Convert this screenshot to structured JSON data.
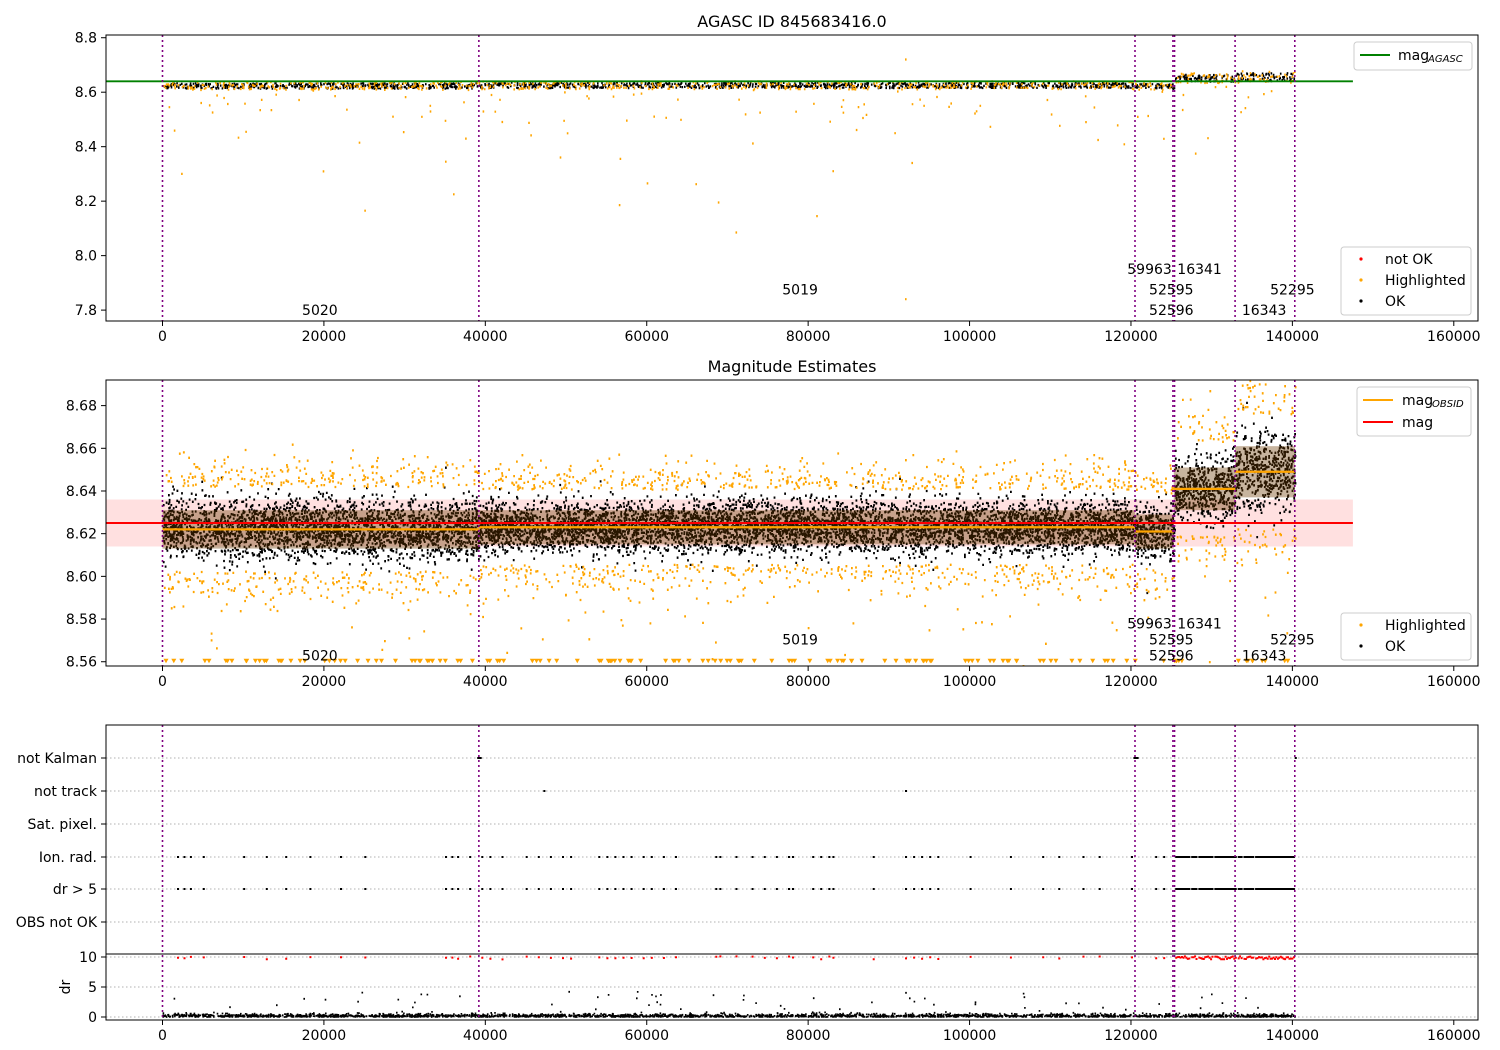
{
  "chart_data": {
    "type": "scatter",
    "x_ticks": [
      0,
      20000,
      40000,
      60000,
      80000,
      100000,
      120000,
      140000,
      160000
    ],
    "x_range": [
      -7000,
      163000
    ],
    "obsid_boundaries": [
      0,
      39200,
      120500,
      125200,
      125400,
      132900,
      140300
    ],
    "panels": [
      {
        "title": "AGASC ID 845683416.0",
        "ylim": [
          7.76,
          8.81
        ],
        "y_ticks": [
          7.8,
          8.0,
          8.2,
          8.4,
          8.6,
          8.8
        ],
        "legend_top": [
          {
            "label": "mag",
            "sub": "AGASC",
            "color": "#008000"
          }
        ],
        "legend_bottom": [
          {
            "label": "not OK",
            "color": "#ff0000"
          },
          {
            "label": "Highlighted",
            "color": "#ffa500"
          },
          {
            "label": "OK",
            "color": "#000000"
          }
        ],
        "mag_agasc": 8.64,
        "segments": [
          {
            "x0": 0,
            "x1": 39200,
            "mean": 8.623,
            "spread": 0.02
          },
          {
            "x0": 39200,
            "x1": 120500,
            "mean": 8.625,
            "spread": 0.02
          },
          {
            "x0": 120500,
            "x1": 125300,
            "mean": 8.621,
            "spread": 0.018
          },
          {
            "x0": 125300,
            "x1": 132900,
            "mean": 8.651,
            "spread": 0.025
          },
          {
            "x0": 132900,
            "x1": 140300,
            "mean": 8.655,
            "spread": 0.03
          }
        ],
        "obsid_labels": [
          {
            "text": "5020",
            "x": 19500,
            "y": 7.8
          },
          {
            "text": "5019",
            "x": 79000,
            "y": 7.875
          },
          {
            "text": "59963",
            "x": 122300,
            "y": 7.95
          },
          {
            "text": "52595",
            "x": 125000,
            "y": 7.875
          },
          {
            "text": "52596",
            "x": 125000,
            "y": 7.8
          },
          {
            "text": "16341",
            "x": 128500,
            "y": 7.95
          },
          {
            "text": "16343",
            "x": 136500,
            "y": 7.8
          },
          {
            "text": "52295",
            "x": 140000,
            "y": 7.875
          }
        ]
      },
      {
        "title": "Magnitude Estimates",
        "ylim": [
          8.558,
          8.692
        ],
        "y_ticks": [
          8.56,
          8.58,
          8.6,
          8.62,
          8.64,
          8.66,
          8.68
        ],
        "legend_top": [
          {
            "label": "mag",
            "sub": "OBSID",
            "color": "#ffa500"
          },
          {
            "label": "mag",
            "sub": "",
            "color": "#ff0000"
          }
        ],
        "legend_bottom": [
          {
            "label": "Highlighted",
            "color": "#ffa500"
          },
          {
            "label": "OK",
            "color": "#000000"
          }
        ],
        "mag": 8.625,
        "mag_band": [
          8.614,
          8.636
        ],
        "segments": [
          {
            "x0": 0,
            "x1": 39200,
            "mean": 8.622,
            "std": 0.009
          },
          {
            "x0": 39200,
            "x1": 120500,
            "mean": 8.623,
            "std": 0.008
          },
          {
            "x0": 120500,
            "x1": 125300,
            "mean": 8.621,
            "std": 0.008
          },
          {
            "x0": 125300,
            "x1": 132900,
            "mean": 8.641,
            "std": 0.01
          },
          {
            "x0": 132900,
            "x1": 140300,
            "mean": 8.649,
            "std": 0.012
          }
        ],
        "obsid_labels": [
          {
            "text": "5020",
            "x": 19500,
            "y": 8.563
          },
          {
            "text": "5019",
            "x": 79000,
            "y": 8.5705
          },
          {
            "text": "59963",
            "x": 122300,
            "y": 8.578
          },
          {
            "text": "52595",
            "x": 125000,
            "y": 8.5705
          },
          {
            "text": "52596",
            "x": 125000,
            "y": 8.563
          },
          {
            "text": "16341",
            "x": 128500,
            "y": 8.578
          },
          {
            "text": "16343",
            "x": 136500,
            "y": 8.563
          },
          {
            "text": "52295",
            "x": 140000,
            "y": 8.5705
          }
        ]
      },
      {
        "title": "",
        "flag_categories": [
          "not Kalman",
          "not track",
          "Sat. pixel.",
          "Ion. rad.",
          "dr > 5",
          "OBS not OK"
        ],
        "dr_label": "dr",
        "dr_ticks": [
          0,
          5,
          10
        ],
        "dr_ylim": [
          -0.5,
          10.5
        ]
      }
    ]
  }
}
